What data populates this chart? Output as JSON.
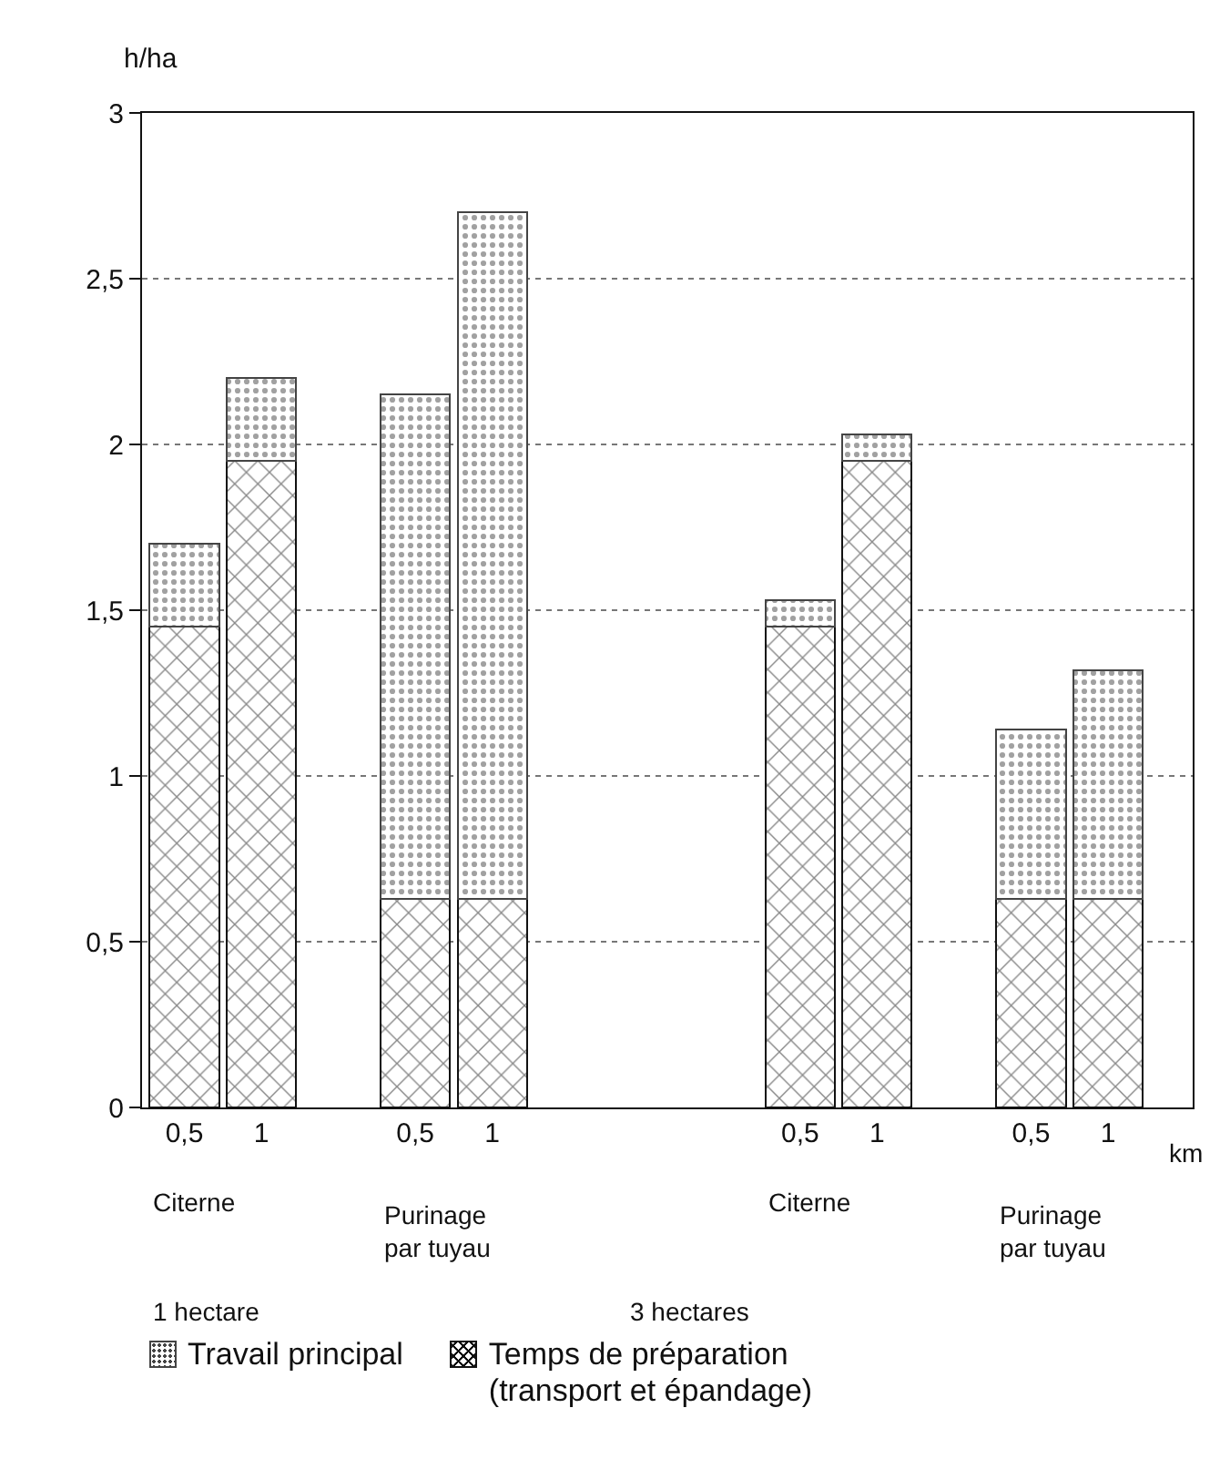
{
  "chart_data": {
    "type": "bar",
    "stacked": true,
    "ylabel": "h/ha",
    "categories": [
      "0,5",
      "1",
      null,
      "0,5",
      "1",
      null,
      null,
      null,
      "0,5",
      "1",
      null,
      "0,5",
      "1"
    ],
    "series": [
      {
        "name": "Temps de préparation (transport et épandage)",
        "color": "#111111",
        "values": [
          1.45,
          1.95,
          null,
          0.63,
          0.63,
          null,
          null,
          null,
          1.45,
          1.95,
          null,
          0.63,
          0.63
        ]
      },
      {
        "name": "Travail principal",
        "color": "#444444",
        "values": [
          0.25,
          0.25,
          null,
          1.52,
          2.07,
          null,
          null,
          null,
          0.08,
          0.08,
          null,
          0.51,
          0.69
        ]
      }
    ],
    "ylim": [
      0,
      3
    ],
    "yticks": [
      0,
      {
        "value": 0.5,
        "label": "0,5"
      },
      1,
      {
        "value": 1.5,
        "label": "1,5"
      },
      2,
      {
        "value": 2.5,
        "label": "2,5"
      },
      3
    ],
    "grid": "y",
    "line_style": "dotted",
    "legend": "bottom",
    "annotations": [
      "km",
      "Citerne",
      "Purinage par tuyau",
      "Citerne",
      "Purinage par tuyau",
      "1 hectare",
      "3 hectares"
    ]
  }
}
